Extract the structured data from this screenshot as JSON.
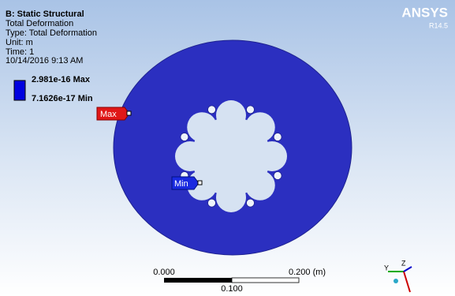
{
  "header": {
    "title": "B: Static Structural",
    "lines": [
      "Total Deformation",
      "Type: Total Deformation",
      "Unit: m",
      "Time: 1",
      "10/14/2016 9:13 AM"
    ]
  },
  "legend": {
    "max": "2.981e-16 Max",
    "min": "7.1626e-17 Min"
  },
  "probes": {
    "max": "Max",
    "min": "Min"
  },
  "logo": {
    "brand": "ANSYS",
    "version": "R14.5"
  },
  "scale_bar": {
    "left": "0.000",
    "right": "0.200 (m)",
    "middle": "0.100"
  },
  "triad": {
    "y": "Y",
    "z": "Z"
  }
}
